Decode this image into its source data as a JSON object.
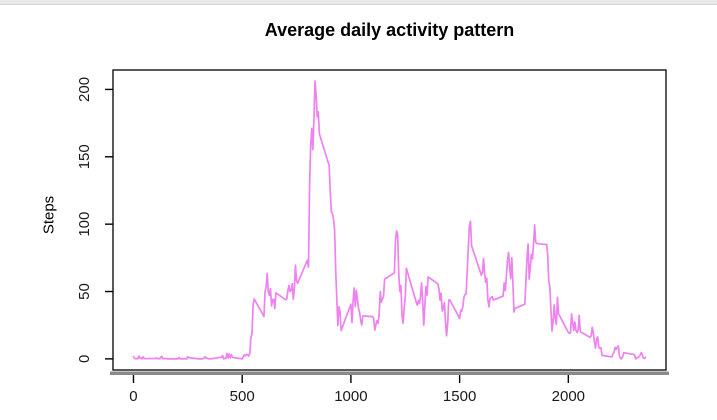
{
  "colors": {
    "line": "#EE82EE",
    "box": "#000000",
    "axis_bar": "#8a8a8a",
    "tick": "#000000",
    "tick_label": "#1a1a1a",
    "top_strip": "#e9e9e9"
  },
  "chart_data": {
    "type": "line",
    "title": "Average daily activity pattern",
    "xlabel": "",
    "ylabel": "Steps",
    "x_ticks": [
      0,
      500,
      1000,
      1500,
      2000
    ],
    "y_ticks": [
      0,
      50,
      100,
      150,
      200
    ],
    "xlim": [
      -94.2,
      2449.2
    ],
    "ylim": [
      -8.25,
      214.42
    ],
    "grid": false,
    "legend": "none",
    "x_encoding": {
      "description": "5-minute interval of day coded as 24-hour clock hhmm (0,5,...,55,100,...,2355)",
      "hours": 24,
      "per_hour": 12,
      "minute_step": 5,
      "hour_multiplier": 100
    },
    "values": [
      1.72,
      0.34,
      0.13,
      0.15,
      0.08,
      2.09,
      0.53,
      0.87,
      0,
      1.49,
      0.3,
      0.13,
      0.32,
      0.68,
      0.15,
      0.34,
      0,
      1.11,
      1.83,
      0.17,
      0.17,
      0.38,
      0.26,
      0,
      0,
      0,
      1.13,
      0,
      0,
      0.13,
      0,
      0.23,
      0,
      0,
      1.55,
      0.94,
      0,
      0,
      0,
      0,
      0.21,
      0.62,
      1.62,
      0.59,
      0.49,
      0.08,
      0,
      0,
      1.19,
      0.94,
      2.49,
      0,
      0.34,
      0.36,
      4.11,
      0.66,
      3.49,
      0.83,
      3.11,
      1.11,
      0,
      1.57,
      3.0,
      2.25,
      3.32,
      2.96,
      2.13,
      4.11,
      16.02,
      18.34,
      39.45,
      44.49,
      31.49,
      49.26,
      53.77,
      63.45,
      49.96,
      47.08,
      52.15,
      39.34,
      44.02,
      44.17,
      37.36,
      49.04,
      43.81,
      44.38,
      50.51,
      54.51,
      49.92,
      50.98,
      55.68,
      44.32,
      52.27,
      69.55,
      57.85,
      56.15,
      73.38,
      68.21,
      129.43,
      157.53,
      171.15,
      155.4,
      177.3,
      206.17,
      195.92,
      179.57,
      183.4,
      167.02,
      143.45,
      124.04,
      109.11,
      108.11,
      103.72,
      95.96,
      66.21,
      45.23,
      24.79,
      38.75,
      34.98,
      21.06,
      40.57,
      26.98,
      42.42,
      52.66,
      38.92,
      50.79,
      44.28,
      37.42,
      34.7,
      28.34,
      25.09,
      31.94,
      31.36,
      29.68,
      21.32,
      25.55,
      28.38,
      26.47,
      33.43,
      49.98,
      42.04,
      44.6,
      46.04,
      59.19,
      63.87,
      87.7,
      94.85,
      92.77,
      63.39,
      50.17,
      54.47,
      32.42,
      26.53,
      37.74,
      45.66,
      67.28,
      42.34,
      39.89,
      43.26,
      40.98,
      46.25,
      56.43,
      42.75,
      25.13,
      39.96,
      53.55,
      47.32,
      60.81,
      55.75,
      51.96,
      43.58,
      48.7,
      35.47,
      37.55,
      41.85,
      27.51,
      17.11,
      26.08,
      43.62,
      43.77,
      30.02,
      36.08,
      35.49,
      38.85,
      45.96,
      47.75,
      48.13,
      65.32,
      82.91,
      98.66,
      102.11,
      83.96,
      62.13,
      64.13,
      74.55,
      63.17,
      56.91,
      59.77,
      43.87,
      38.57,
      44.66,
      45.45,
      46.21,
      43.68,
      46.62,
      56.3,
      50.72,
      61.23,
      72.72,
      78.94,
      68.94,
      59.66,
      75.09,
      56.51,
      34.77,
      37.45,
      40.68,
      58.02,
      74.7,
      85.32,
      59.26,
      67.77,
      77.7,
      74.25,
      85.34,
      99.45,
      86.58,
      85.6,
      84.87,
      77.83,
      58.04,
      53.36,
      36.32,
      20.72,
      27.4,
      40.02,
      30.21,
      25.55,
      45.66,
      33.53,
      19.62,
      19.02,
      19.34,
      33.34,
      26.81,
      21.17,
      27.3,
      21.34,
      19.55,
      21.32,
      32.3,
      20.15,
      15.94,
      17.23,
      23.45,
      19.25,
      12.45,
      8.02,
      14.66,
      16.3,
      8.68,
      7.79,
      8.3,
      2.62,
      1.45,
      3.68,
      4.81,
      8.51,
      7.08,
      8.7,
      9.75,
      2.21,
      0.32,
      0.11,
      1.6,
      4.6,
      3.3,
      2.85,
      0,
      0.83,
      0.96,
      1.58,
      2.6,
      4.7,
      3.3,
      0.64,
      0.28,
      1.08
    ]
  }
}
